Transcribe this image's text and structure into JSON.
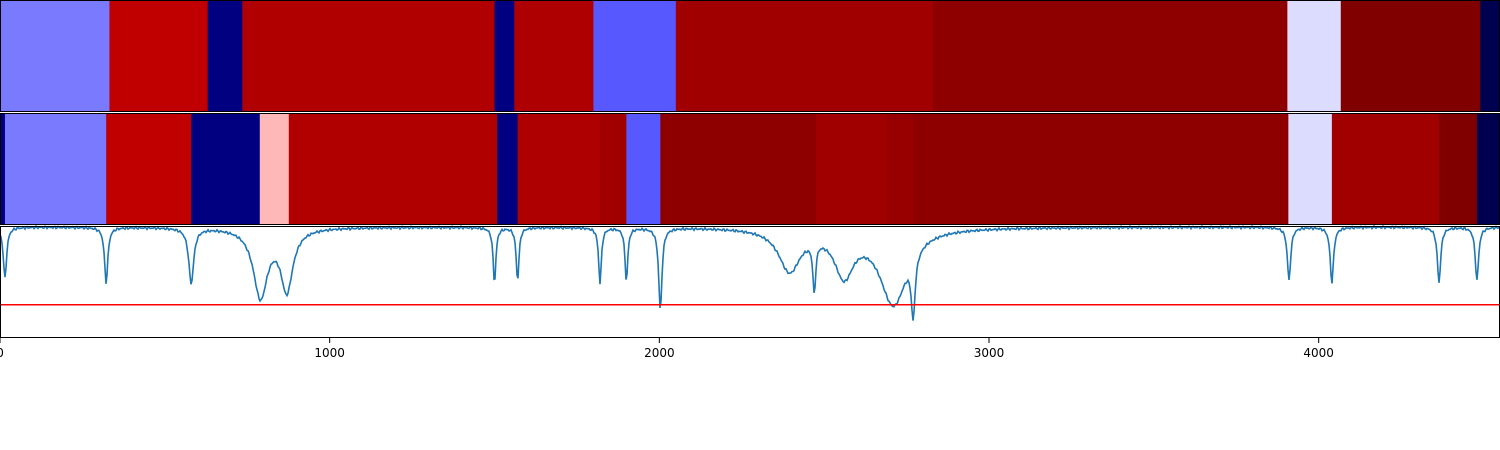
{
  "chart_data": {
    "type": "heatmap",
    "title": "",
    "xlabel": "",
    "ylabel": "",
    "xlim": [
      0,
      4550
    ],
    "grid": false,
    "x_ticks": [
      {
        "value": 0,
        "label": "0"
      },
      {
        "value": 1000,
        "label": "1000"
      },
      {
        "value": 2000,
        "label": "2000"
      },
      {
        "value": 3000,
        "label": "3000"
      },
      {
        "value": 4000,
        "label": "4000"
      }
    ],
    "tracks": [
      {
        "segments": [
          {
            "start": 0,
            "end": 332,
            "color": "#7a7aff"
          },
          {
            "start": 332,
            "end": 630,
            "color": "#c00000"
          },
          {
            "start": 630,
            "end": 735,
            "color": "#000080"
          },
          {
            "start": 735,
            "end": 1500,
            "color": "#b00000"
          },
          {
            "start": 1500,
            "end": 1560,
            "color": "#000080"
          },
          {
            "start": 1560,
            "end": 1800,
            "color": "#ae0000"
          },
          {
            "start": 1800,
            "end": 2050,
            "color": "#5858ff"
          },
          {
            "start": 2050,
            "end": 2830,
            "color": "#a00000"
          },
          {
            "start": 2830,
            "end": 3905,
            "color": "#8e0000"
          },
          {
            "start": 3905,
            "end": 4067,
            "color": "#dcdcff"
          },
          {
            "start": 4067,
            "end": 4490,
            "color": "#800000"
          },
          {
            "start": 4490,
            "end": 4550,
            "color": "#000050"
          }
        ]
      },
      {
        "segments": [
          {
            "start": 0,
            "end": 15,
            "color": "#000080"
          },
          {
            "start": 15,
            "end": 322,
            "color": "#7a7aff"
          },
          {
            "start": 322,
            "end": 580,
            "color": "#c00000"
          },
          {
            "start": 580,
            "end": 788,
            "color": "#000080"
          },
          {
            "start": 788,
            "end": 876,
            "color": "#ffb8b8"
          },
          {
            "start": 876,
            "end": 1508,
            "color": "#b00000"
          },
          {
            "start": 1508,
            "end": 1570,
            "color": "#000080"
          },
          {
            "start": 1570,
            "end": 1820,
            "color": "#ae0000"
          },
          {
            "start": 1820,
            "end": 1900,
            "color": "#a00000"
          },
          {
            "start": 1900,
            "end": 2003,
            "color": "#5858ff"
          },
          {
            "start": 2003,
            "end": 2475,
            "color": "#8e0000"
          },
          {
            "start": 2475,
            "end": 2690,
            "color": "#a00000"
          },
          {
            "start": 2690,
            "end": 2770,
            "color": "#980000"
          },
          {
            "start": 2770,
            "end": 3908,
            "color": "#8e0000"
          },
          {
            "start": 3908,
            "end": 4040,
            "color": "#dcdcff"
          },
          {
            "start": 4040,
            "end": 4365,
            "color": "#a00000"
          },
          {
            "start": 4365,
            "end": 4480,
            "color": "#800000"
          },
          {
            "start": 4480,
            "end": 4550,
            "color": "#000050"
          }
        ]
      }
    ],
    "line": {
      "color": "#1f77b4",
      "baseline": 1.0,
      "dips": [
        {
          "x": 15,
          "depth": 0.46,
          "width": 6
        },
        {
          "x": 322,
          "depth": 0.5,
          "width": 6
        },
        {
          "x": 580,
          "depth": 0.5,
          "width": 9
        },
        {
          "x": 790,
          "depth": 0.62,
          "width": 26
        },
        {
          "x": 870,
          "depth": 0.55,
          "width": 22
        },
        {
          "x": 1500,
          "depth": 0.5,
          "width": 5
        },
        {
          "x": 1570,
          "depth": 0.48,
          "width": 5
        },
        {
          "x": 1820,
          "depth": 0.5,
          "width": 5
        },
        {
          "x": 1900,
          "depth": 0.48,
          "width": 5
        },
        {
          "x": 2003,
          "depth": 0.74,
          "width": 6
        },
        {
          "x": 2395,
          "depth": 0.38,
          "width": 40
        },
        {
          "x": 2470,
          "depth": 0.45,
          "width": 5
        },
        {
          "x": 2560,
          "depth": 0.4,
          "width": 35
        },
        {
          "x": 2710,
          "depth": 0.68,
          "width": 50
        },
        {
          "x": 2770,
          "depth": 0.55,
          "width": 7
        },
        {
          "x": 3910,
          "depth": 0.48,
          "width": 6
        },
        {
          "x": 4040,
          "depth": 0.5,
          "width": 6
        },
        {
          "x": 4365,
          "depth": 0.5,
          "width": 6
        },
        {
          "x": 4480,
          "depth": 0.48,
          "width": 6
        }
      ],
      "threshold": {
        "value": 0.3,
        "color": "#ff0000"
      },
      "ylim": [
        0,
        1.0
      ]
    }
  }
}
